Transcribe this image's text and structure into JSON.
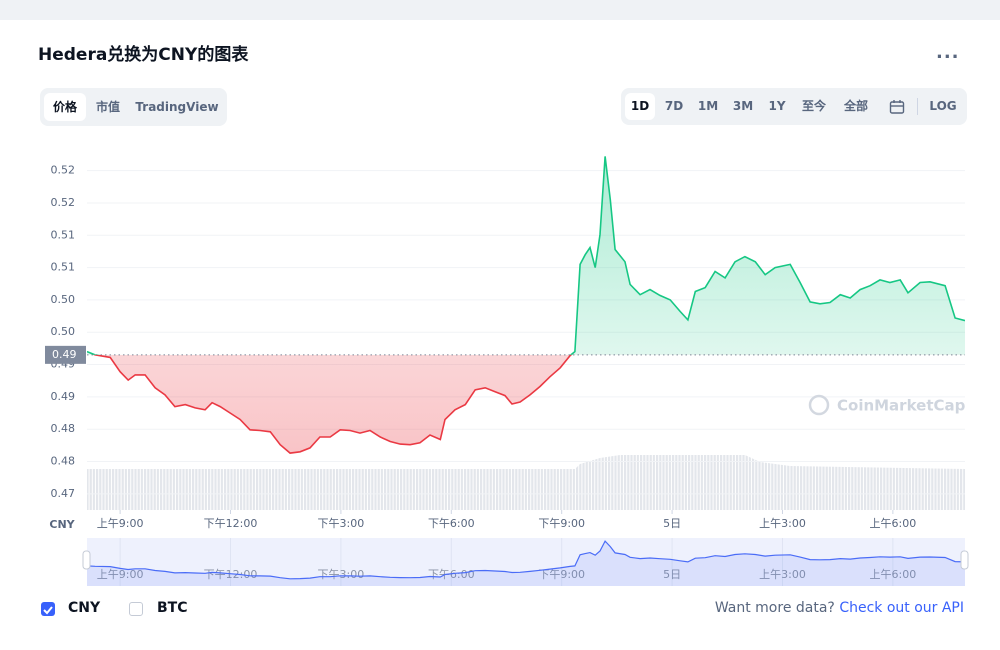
{
  "header": {
    "title": "Hedera兑换为CNY的图表",
    "menu": "..."
  },
  "tabs": [
    "价格",
    "市值",
    "TradingView"
  ],
  "ranges": [
    "1D",
    "7D",
    "1M",
    "3M",
    "1Y",
    "至今",
    "全部",
    "LOG"
  ],
  "chart_data": {
    "type": "line",
    "y_label": "CNY",
    "watermark": "CoinMarketCap",
    "up_color": "#16c784",
    "down_color": "#ea3943",
    "navigator_color": "#4a6cf7",
    "reference": {
      "value": 0.494,
      "label": "0.49"
    },
    "x": [
      8.1,
      8.32,
      8.73,
      9.0,
      9.22,
      9.41,
      9.68,
      9.95,
      10.22,
      10.49,
      10.77,
      11.04,
      11.31,
      11.5,
      11.72,
      11.99,
      12.26,
      12.53,
      12.8,
      13.08,
      13.35,
      13.62,
      13.89,
      14.16,
      14.43,
      14.71,
      14.98,
      15.25,
      15.52,
      15.79,
      16.07,
      16.34,
      16.61,
      16.88,
      17.15,
      17.42,
      17.7,
      17.83,
      18.1,
      18.38,
      18.65,
      18.92,
      19.19,
      19.46,
      19.65,
      19.87,
      20.14,
      20.41,
      20.68,
      20.96,
      21.23,
      21.36,
      21.5,
      21.64,
      21.77,
      21.91,
      22.04,
      22.18,
      22.32,
      22.45,
      22.72,
      22.86,
      23.13,
      23.4,
      23.67,
      23.95,
      24.22,
      24.43,
      24.63,
      24.9,
      25.17,
      25.44,
      25.71,
      25.98,
      26.26,
      26.53,
      26.8,
      27.21,
      27.48,
      27.75,
      28.02,
      28.29,
      28.57,
      28.84,
      29.11,
      29.38,
      29.65,
      29.92,
      30.2,
      30.41,
      30.74,
      31.01,
      31.42,
      31.69,
      31.96
    ],
    "values": [
      0.4945,
      0.494,
      0.4936,
      0.4914,
      0.4901,
      0.4909,
      0.4909,
      0.4889,
      0.4878,
      0.486,
      0.4863,
      0.4858,
      0.4855,
      0.4866,
      0.486,
      0.485,
      0.484,
      0.4824,
      0.4823,
      0.4821,
      0.4801,
      0.4788,
      0.479,
      0.4796,
      0.4813,
      0.4813,
      0.4824,
      0.4823,
      0.4819,
      0.4823,
      0.4813,
      0.4806,
      0.4802,
      0.4801,
      0.4804,
      0.4816,
      0.4809,
      0.484,
      0.4855,
      0.4863,
      0.4886,
      0.4889,
      0.4883,
      0.4877,
      0.4864,
      0.4867,
      0.4878,
      0.4891,
      0.4906,
      0.492,
      0.4939,
      0.4945,
      0.508,
      0.5095,
      0.5106,
      0.5075,
      0.5126,
      0.5247,
      0.518,
      0.5103,
      0.5084,
      0.5049,
      0.5033,
      0.5041,
      0.5032,
      0.5025,
      0.5007,
      0.4994,
      0.5038,
      0.5044,
      0.5069,
      0.5059,
      0.5084,
      0.5092,
      0.5084,
      0.5064,
      0.5075,
      0.508,
      0.5052,
      0.5022,
      0.5019,
      0.5021,
      0.5033,
      0.5028,
      0.5041,
      0.5047,
      0.5056,
      0.5052,
      0.5056,
      0.5036,
      0.5052,
      0.5053,
      0.5047,
      0.4997,
      0.4993
    ],
    "xlim": [
      8.1,
      31.96
    ],
    "xticks": [
      {
        "value": 9,
        "label": "上午9:00"
      },
      {
        "value": 12,
        "label": "下午12:00"
      },
      {
        "value": 15,
        "label": "下午3:00"
      },
      {
        "value": 18,
        "label": "下午6:00"
      },
      {
        "value": 21,
        "label": "下午9:00"
      },
      {
        "value": 24,
        "label": "5日"
      },
      {
        "value": 27,
        "label": "上午3:00"
      },
      {
        "value": 30,
        "label": "上午6:00"
      }
    ],
    "ylim": [
      0.47,
      0.526
    ],
    "yticks": [
      {
        "value": 0.4725,
        "label": "0.47"
      },
      {
        "value": 0.4775,
        "label": "0.48"
      },
      {
        "value": 0.4825,
        "label": "0.48"
      },
      {
        "value": 0.4875,
        "label": "0.49"
      },
      {
        "value": 0.4925,
        "label": "0.49"
      },
      {
        "value": 0.4975,
        "label": "0.50"
      },
      {
        "value": 0.5025,
        "label": "0.50"
      },
      {
        "value": 0.5075,
        "label": "0.51"
      },
      {
        "value": 0.5125,
        "label": "0.51"
      },
      {
        "value": 0.5175,
        "label": "0.52"
      },
      {
        "value": 0.5225,
        "label": "0.52"
      }
    ],
    "grid": true
  },
  "footer": {
    "options": [
      "CNY",
      "BTC"
    ],
    "prompt": "Want more data?",
    "link": "Check out our API"
  }
}
